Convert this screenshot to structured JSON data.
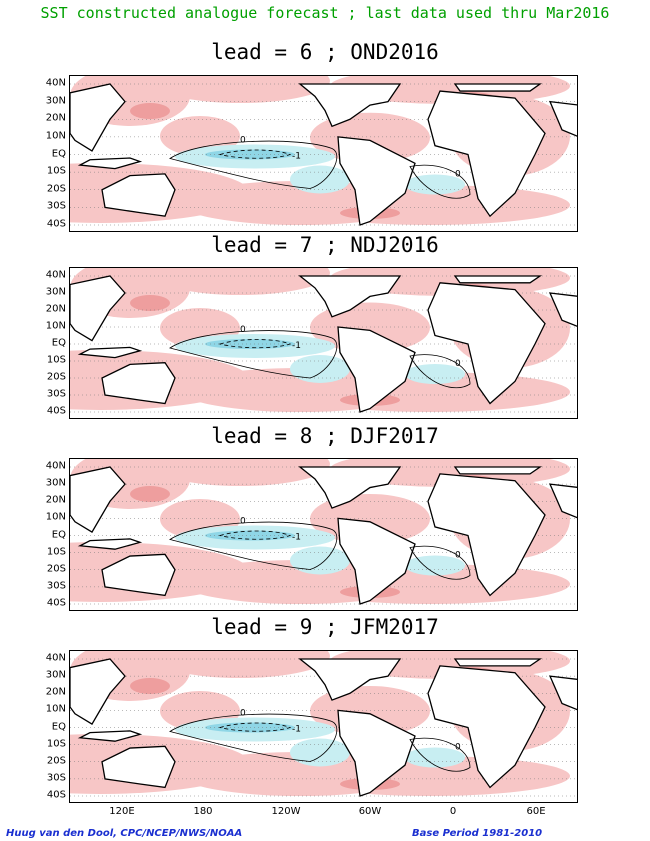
{
  "title": "SST constructed analogue forecast ; last data used thru Mar2016",
  "panels": [
    {
      "label": "lead = 6 ; OND2016"
    },
    {
      "label": "lead = 7 ; NDJ2016"
    },
    {
      "label": "lead = 8 ; DJF2017"
    },
    {
      "label": "lead = 9 ; JFM2017"
    }
  ],
  "lat_labels": [
    "40N",
    "30N",
    "20N",
    "10N",
    "EQ",
    "10S",
    "20S",
    "30S",
    "40S"
  ],
  "lon_labels": [
    "120E",
    "180",
    "120W",
    "60W",
    "0",
    "60E"
  ],
  "contour_labels": {
    "zero": "0",
    "minus_one": "-1"
  },
  "credit_left": "Huug van den Dool, CPC/NCEP/NWS/NOAA",
  "credit_right": "Base Period 1981-2010",
  "colors": {
    "warm": "#f7c6c6",
    "warm_strong": "#ee9e9e",
    "cool": "#c8eef2",
    "cool_strong": "#8fd6e6",
    "title": "#00a000",
    "credit": "#1a2fd0"
  }
}
